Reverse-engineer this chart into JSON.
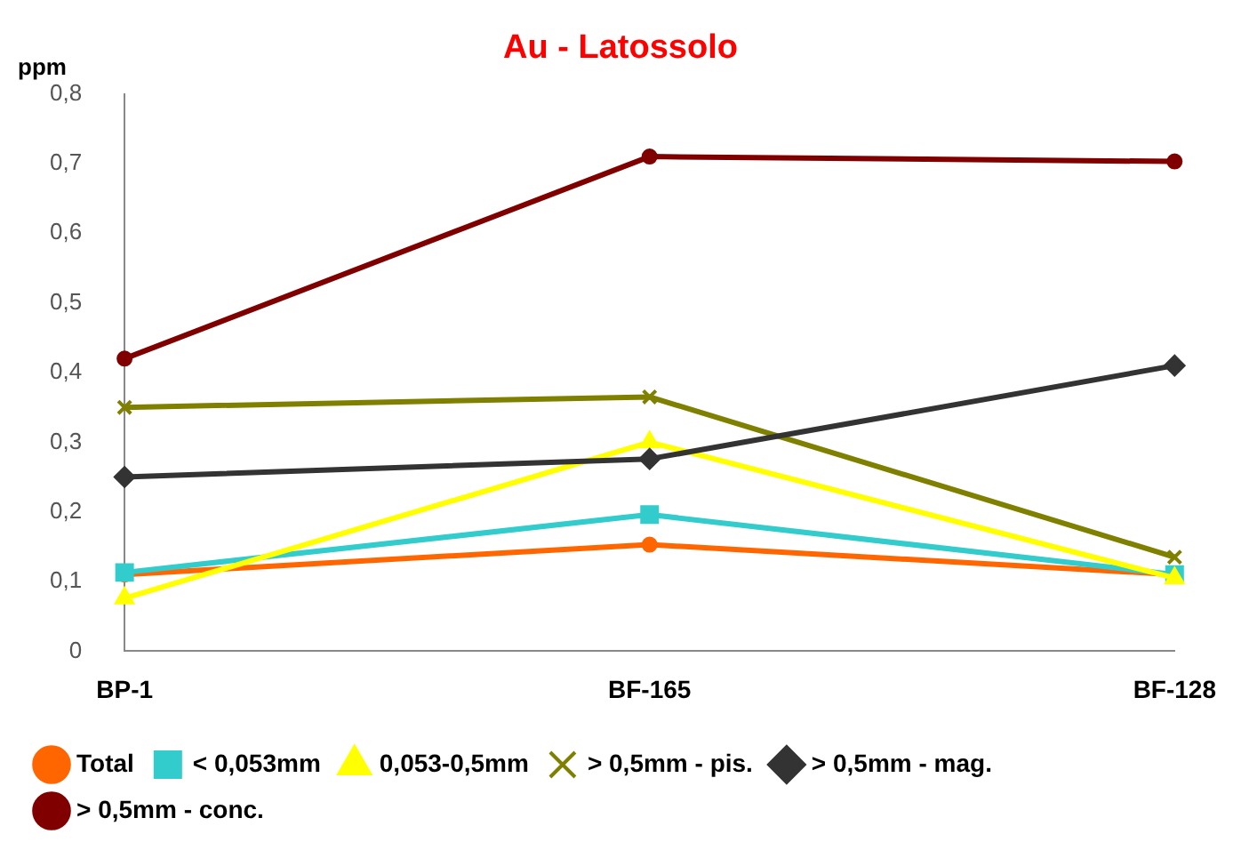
{
  "chart_data": {
    "type": "line",
    "title": "Au - Latossolo",
    "ylabel": "ppm",
    "categories": [
      "BP-1",
      "BF-165",
      "BF-128"
    ],
    "series": [
      {
        "name": "Total",
        "color": "#ff6600",
        "marker": "circle",
        "values": [
          0.11,
          0.153,
          0.11
        ]
      },
      {
        "name": "< 0,053mm",
        "color": "#33cccc",
        "marker": "square",
        "values": [
          0.113,
          0.196,
          0.11
        ]
      },
      {
        "name": "0,053-0,5mm",
        "color": "#ffff00",
        "marker": "triangle",
        "values": [
          0.076,
          0.3,
          0.105
        ]
      },
      {
        "name": "> 0,5mm - pis.",
        "color": "#808000",
        "marker": "cross",
        "values": [
          0.35,
          0.365,
          0.135
        ]
      },
      {
        "name": "> 0,5mm - mag.",
        "color": "#333333",
        "marker": "diamond",
        "values": [
          0.25,
          0.276,
          0.41
        ]
      },
      {
        "name": "> 0,5mm - conc.",
        "color": "#800000",
        "marker": "circle",
        "values": [
          0.42,
          0.71,
          0.703
        ]
      }
    ],
    "ylim": [
      0,
      0.8
    ],
    "yticks": [
      0,
      {
        "value": 0.1,
        "label": "0,1"
      },
      {
        "value": 0.2,
        "label": "0,2"
      },
      {
        "value": 0.3,
        "label": "0,3"
      },
      {
        "value": 0.4,
        "label": "0,4"
      },
      {
        "value": 0.5,
        "label": "0,5"
      },
      {
        "value": 0.6,
        "label": "0,6"
      },
      {
        "value": 0.7,
        "label": "0,7"
      },
      {
        "value": 0.8,
        "label": "0,8"
      }
    ],
    "grid": false,
    "legend": "bottom",
    "line_style": "solid"
  }
}
